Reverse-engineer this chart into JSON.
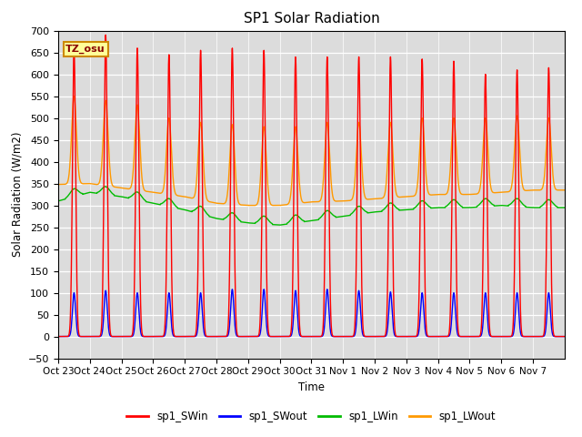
{
  "title": "SP1 Solar Radiation",
  "ylabel": "Solar Radiation (W/m2)",
  "xlabel": "Time",
  "ylim": [
    -50,
    700
  ],
  "bg_color": "#dcdcdc",
  "annotation_text": "TZ_osu",
  "annotation_bg": "#ffff99",
  "annotation_border": "#cc8800",
  "series": {
    "sp1_SWin": {
      "color": "#ff0000",
      "lw": 1.0
    },
    "sp1_SWout": {
      "color": "#0000ff",
      "lw": 1.0
    },
    "sp1_LWin": {
      "color": "#00bb00",
      "lw": 1.0
    },
    "sp1_LWout": {
      "color": "#ff9900",
      "lw": 1.0
    }
  },
  "xtick_labels": [
    "Oct 23",
    "Oct 24",
    "Oct 25",
    "Oct 26",
    "Oct 27",
    "Oct 28",
    "Oct 29",
    "Oct 30",
    "Oct 31",
    "Nov 1",
    "Nov 2",
    "Nov 3",
    "Nov 4",
    "Nov 5",
    "Nov 6",
    "Nov 7"
  ],
  "n_days": 16,
  "yticks": [
    -50,
    0,
    50,
    100,
    150,
    200,
    250,
    300,
    350,
    400,
    450,
    500,
    550,
    600,
    650,
    700
  ]
}
